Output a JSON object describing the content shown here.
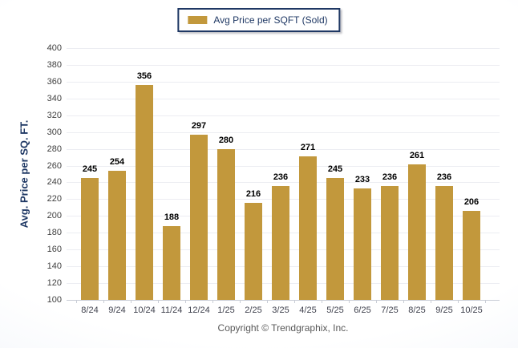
{
  "legend": {
    "label": "Avg Price per SQFT (Sold)",
    "swatch_color": "#C2983C"
  },
  "footer": {
    "copyright": "Copyright © Trendgraphix, Inc."
  },
  "colors": {
    "bar": "#C2983C",
    "navy": "#1F3864",
    "gridline": "#ECEDF2",
    "axis_line": "#C9CDD6",
    "tick_text": "#404040",
    "value_label": "#000000",
    "copyright_text": "#595959"
  },
  "chart_data": {
    "type": "bar",
    "title": "Avg Price per SQFT (Sold)",
    "categories": [
      "8/24",
      "9/24",
      "10/24",
      "11/24",
      "12/24",
      "1/25",
      "2/25",
      "3/25",
      "4/25",
      "5/25",
      "6/25",
      "7/25",
      "8/25",
      "9/25",
      "10/25"
    ],
    "values": [
      245,
      254,
      356,
      188,
      297,
      280,
      216,
      236,
      271,
      245,
      233,
      236,
      261,
      236,
      206
    ],
    "xlabel": "",
    "ylabel": "Avg. Price per SQ. FT.",
    "ylim": [
      100,
      400
    ],
    "ytick_step": 20,
    "grid": true,
    "legend_position": "top-center",
    "value_labels": true
  }
}
